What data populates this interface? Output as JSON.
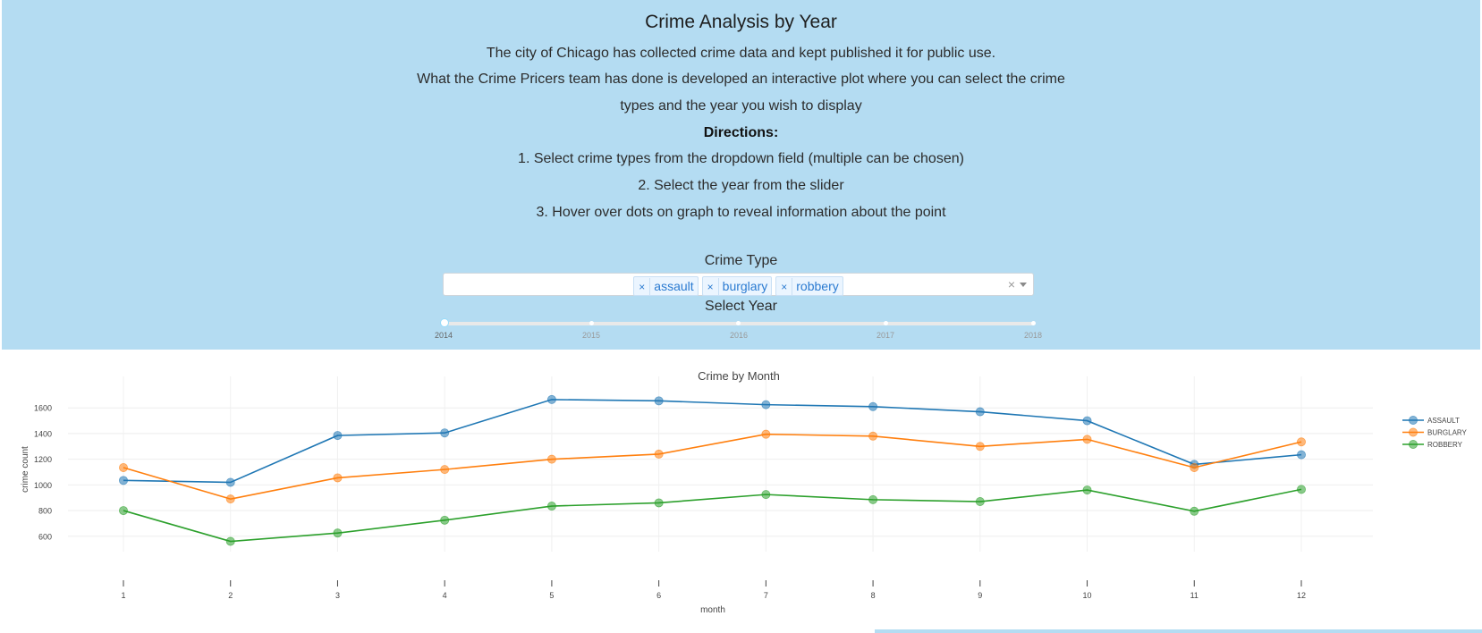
{
  "header": {
    "title": "Crime Analysis by Year",
    "intro_lines": [
      "The city of Chicago has collected crime data and kept published it for public use.",
      "What the Crime Pricers team has done is developed an interactive plot where you can select the crime",
      "types and the year you wish to display"
    ],
    "directions_heading": "Directions:",
    "directions": [
      "1. Select crime types from the dropdown field (multiple can be chosen)",
      "2. Select the year from the slider",
      "3. Hover over dots on graph to reveal information about the point"
    ]
  },
  "crime_type": {
    "label": "Crime Type",
    "selected": [
      "assault",
      "burglary",
      "robbery"
    ],
    "remove_glyph": "×",
    "clear_glyph": "×"
  },
  "year_slider": {
    "label": "Select Year",
    "marks": [
      "2014",
      "2015",
      "2016",
      "2017",
      "2018"
    ],
    "value": "2014"
  },
  "colors": {
    "header_bg": "#b4dcf2",
    "assault": "#1f77b4",
    "burglary": "#ff7f0e",
    "robbery": "#2ca02c"
  },
  "chart_data": {
    "type": "line",
    "title": "Crime by Month",
    "xlabel": "month",
    "ylabel": "crime count",
    "x": [
      1,
      2,
      3,
      4,
      5,
      6,
      7,
      8,
      9,
      10,
      11,
      12
    ],
    "xticks": [
      "1",
      "2",
      "3",
      "4",
      "5",
      "6",
      "7",
      "8",
      "9",
      "10",
      "11",
      "12"
    ],
    "yticks": [
      600,
      800,
      1000,
      1200,
      1400,
      1600
    ],
    "ylim": [
      480,
      1720
    ],
    "grid": true,
    "legend_position": "top-right",
    "series": [
      {
        "name": "ASSAULT",
        "color": "#1f77b4",
        "values": [
          1035,
          1020,
          1385,
          1405,
          1665,
          1655,
          1625,
          1610,
          1570,
          1500,
          1160,
          1235
        ]
      },
      {
        "name": "BURGLARY",
        "color": "#ff7f0e",
        "values": [
          1135,
          890,
          1055,
          1120,
          1200,
          1240,
          1395,
          1380,
          1300,
          1355,
          1135,
          1335
        ]
      },
      {
        "name": "ROBBERY",
        "color": "#2ca02c",
        "values": [
          800,
          560,
          625,
          725,
          835,
          860,
          925,
          885,
          870,
          960,
          795,
          965
        ]
      }
    ]
  }
}
